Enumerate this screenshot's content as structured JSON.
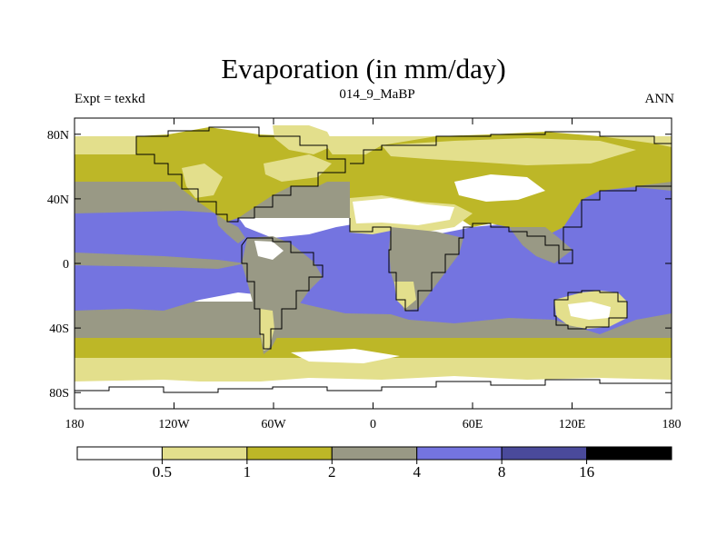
{
  "chart_data": {
    "type": "heatmap",
    "title": "Evaporation (in mm/day)",
    "subtitle_left": "Expt = texkd",
    "subtitle_center": "014_9_MaBP",
    "subtitle_right": "ANN",
    "x_ticks": [
      "180",
      "120W",
      "60W",
      "0",
      "60E",
      "120E",
      "180"
    ],
    "y_ticks": [
      "80N",
      "40N",
      "0",
      "40S",
      "80S"
    ],
    "xlim": [
      -180,
      180
    ],
    "ylim": [
      -90,
      90
    ],
    "colorbar": {
      "levels": [
        "0.5",
        "1",
        "2",
        "4",
        "8",
        "16"
      ],
      "colors": [
        "#ffffff",
        "#e3df8c",
        "#bdb727",
        "#999985",
        "#7474e0",
        "#4a4a9b",
        "#000000"
      ]
    }
  }
}
